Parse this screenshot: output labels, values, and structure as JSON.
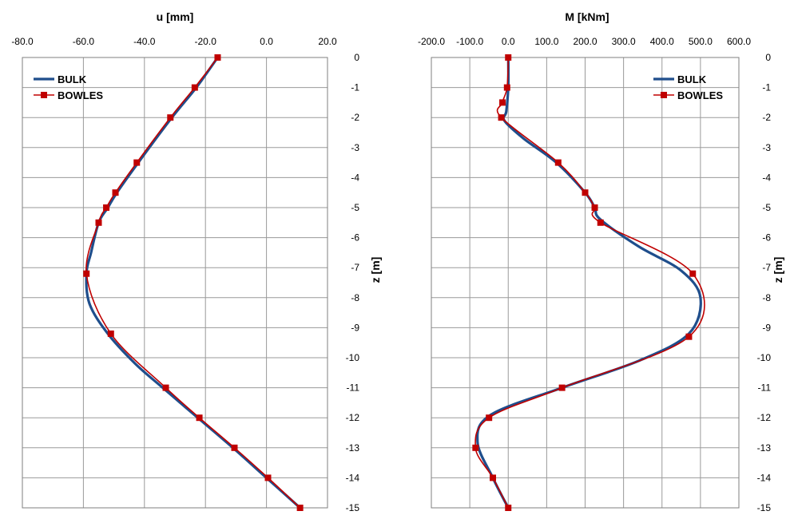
{
  "chart_data": [
    {
      "type": "line",
      "title": "u [mm]",
      "ylabel": "z [m]",
      "xlim": [
        -80,
        20
      ],
      "ylim": [
        -15,
        0
      ],
      "x_ticks": [
        -80,
        -60,
        -40,
        -20,
        0,
        20
      ],
      "x_tick_labels": [
        "-80.0",
        "-60.0",
        "-40.0",
        "-20.0",
        "0.0",
        "20.0"
      ],
      "y_ticks": [
        0,
        -1,
        -2,
        -3,
        -4,
        -5,
        -6,
        -7,
        -8,
        -9,
        -10,
        -11,
        -12,
        -13,
        -14,
        -15
      ],
      "y_tick_labels": [
        "0",
        "-1",
        "-2",
        "-3",
        "-4",
        "-5",
        "-6",
        "-7",
        "-8",
        "-9",
        "-10",
        "-11",
        "-12",
        "-13",
        "-14",
        "-15"
      ],
      "grid": true,
      "legend": "top-left",
      "series": [
        {
          "name": "BULK",
          "color": "#1f4e8c",
          "points": [
            [
              -16,
              0
            ],
            [
              -23,
              -1
            ],
            [
              -31,
              -2
            ],
            [
              -42,
              -3.5
            ],
            [
              -49,
              -4.5
            ],
            [
              -52,
              -5
            ],
            [
              -55,
              -5.5
            ],
            [
              -57.5,
              -6.5
            ],
            [
              -59,
              -7.2
            ],
            [
              -58,
              -8.2
            ],
            [
              -52,
              -9.2
            ],
            [
              -43,
              -10.2
            ],
            [
              -34,
              -11
            ],
            [
              -22.5,
              -12
            ],
            [
              -11,
              -13
            ],
            [
              0,
              -14
            ],
            [
              11,
              -15
            ]
          ]
        },
        {
          "name": "BOWLES",
          "color": "#c00000",
          "markers": true,
          "points": [
            [
              -16,
              0
            ],
            [
              -23.5,
              -1
            ],
            [
              -31.5,
              -2
            ],
            [
              -42.5,
              -3.5
            ],
            [
              -49.5,
              -4.5
            ],
            [
              -52.5,
              -5
            ],
            [
              -55,
              -5.5
            ],
            [
              -59,
              -7.2
            ],
            [
              -51,
              -9.2
            ],
            [
              -33,
              -11
            ],
            [
              -22,
              -12
            ],
            [
              -10.5,
              -13
            ],
            [
              0.5,
              -14
            ],
            [
              11,
              -15
            ]
          ]
        }
      ]
    },
    {
      "type": "line",
      "title": "M [kNm]",
      "ylabel": "z [m]",
      "xlim": [
        -200,
        600
      ],
      "ylim": [
        -15,
        0
      ],
      "x_ticks": [
        -200,
        -100,
        0,
        100,
        200,
        300,
        400,
        500,
        600
      ],
      "x_tick_labels": [
        "-200.0",
        "-100.0",
        "0.0",
        "100.0",
        "200.0",
        "300.0",
        "400.0",
        "500.0",
        "600.0"
      ],
      "y_ticks": [
        0,
        -1,
        -2,
        -3,
        -4,
        -5,
        -6,
        -7,
        -8,
        -9,
        -10,
        -11,
        -12,
        -13,
        -14,
        -15
      ],
      "y_tick_labels": [
        "0",
        "-1",
        "-2",
        "-3",
        "-4",
        "-5",
        "-6",
        "-7",
        "-8",
        "-9",
        "-10",
        "-11",
        "-12",
        "-13",
        "-14",
        "-15"
      ],
      "grid": true,
      "legend": "top-right",
      "series": [
        {
          "name": "BULK",
          "color": "#1f4e8c",
          "points": [
            [
              0,
              0
            ],
            [
              0,
              -1
            ],
            [
              -5,
              -1.8
            ],
            [
              -10,
              -2.1
            ],
            [
              40,
              -2.7
            ],
            [
              125,
              -3.5
            ],
            [
              200,
              -4.5
            ],
            [
              225,
              -5
            ],
            [
              240,
              -5.4
            ],
            [
              340,
              -6.3
            ],
            [
              450,
              -7.1
            ],
            [
              500,
              -8
            ],
            [
              470,
              -9.2
            ],
            [
              340,
              -10.1
            ],
            [
              140,
              -11
            ],
            [
              -45,
              -11.9
            ],
            [
              -80,
              -12.8
            ],
            [
              -40,
              -14
            ],
            [
              0,
              -15
            ]
          ]
        },
        {
          "name": "BOWLES",
          "color": "#c00000",
          "markers": true,
          "points": [
            [
              0,
              0
            ],
            [
              -3,
              -1
            ],
            [
              -15,
              -1.5
            ],
            [
              -18,
              -2
            ],
            [
              130,
              -3.5
            ],
            [
              200,
              -4.5
            ],
            [
              225,
              -5
            ],
            [
              240,
              -5.5
            ],
            [
              480,
              -7.2
            ],
            [
              470,
              -9.3
            ],
            [
              140,
              -11
            ],
            [
              -50,
              -12
            ],
            [
              -85,
              -13
            ],
            [
              -40,
              -14
            ],
            [
              0,
              -15
            ]
          ]
        }
      ]
    }
  ]
}
